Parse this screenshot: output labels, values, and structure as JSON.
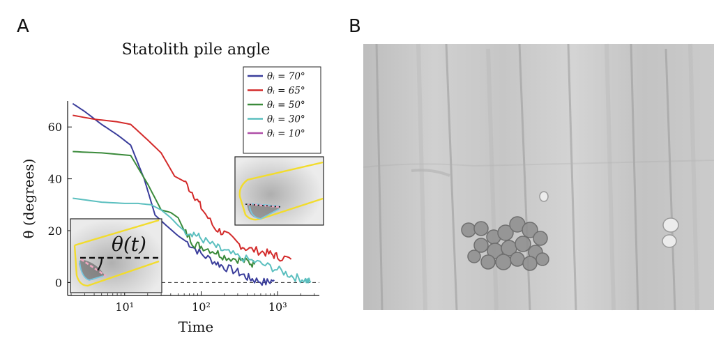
{
  "panels": {
    "a": "A",
    "b": "B"
  },
  "chart_data": {
    "type": "line",
    "title": "Statolith pile angle",
    "xlabel": "Time",
    "ylabel": "θ (degrees)",
    "xscale": "log",
    "xlim": [
      1.8,
      3500
    ],
    "ylim": [
      -5,
      70
    ],
    "xticks": [
      10,
      100,
      1000
    ],
    "xtick_labels": [
      "10¹",
      "10²",
      "10³"
    ],
    "yticks": [
      0,
      20,
      40,
      60
    ],
    "ytick_labels": [
      "0",
      "20",
      "40",
      "60"
    ],
    "grid": false,
    "legend_position": "top-right",
    "reference_line": {
      "y": 0,
      "style": "dashed"
    },
    "series": [
      {
        "name": "θᵢ = 70°",
        "color": "#3a3d9b",
        "x": [
          2.1,
          3,
          5,
          8,
          12,
          18,
          25,
          35,
          50,
          70,
          100,
          150,
          200,
          300,
          400,
          500,
          700,
          900
        ],
        "y": [
          69,
          66,
          61,
          57,
          53,
          40,
          26,
          22,
          18,
          15,
          11,
          8,
          6,
          4,
          2,
          1,
          0,
          1
        ]
      },
      {
        "name": "θᵢ = 65°",
        "color": "#d32a2a",
        "x": [
          2.1,
          4,
          8,
          12,
          20,
          30,
          45,
          60,
          80,
          100,
          150,
          200,
          300,
          400,
          600,
          800,
          1000,
          1500
        ],
        "y": [
          64.5,
          63,
          62,
          61,
          55,
          50,
          41,
          39,
          34,
          29,
          21,
          19,
          15,
          13,
          12,
          11,
          10,
          9
        ]
      },
      {
        "name": "θᵢ = 50°",
        "color": "#3a8a3a",
        "x": [
          2.1,
          5,
          12,
          20,
          30,
          40,
          50,
          60,
          80,
          100,
          150,
          200,
          300,
          400,
          500
        ],
        "y": [
          50.5,
          50,
          49,
          38,
          28,
          27,
          25,
          20,
          15,
          14,
          12,
          10,
          9,
          8,
          7
        ]
      },
      {
        "name": "θᵢ = 30°",
        "color": "#5bbfbf",
        "x": [
          2.1,
          5,
          10,
          15,
          22,
          30,
          40,
          50,
          60,
          80,
          100,
          150,
          200,
          300,
          500,
          800,
          1200,
          1700,
          2300,
          2700
        ],
        "y": [
          32.5,
          31,
          30.5,
          30.5,
          30,
          28,
          25,
          22,
          20,
          19,
          17,
          14,
          12,
          10,
          8,
          6,
          4,
          2,
          1,
          0
        ]
      },
      {
        "name": "θᵢ = 10°",
        "color": "#b04fa8",
        "x": [],
        "y": []
      }
    ],
    "annotations": [
      "θ(t)"
    ]
  }
}
